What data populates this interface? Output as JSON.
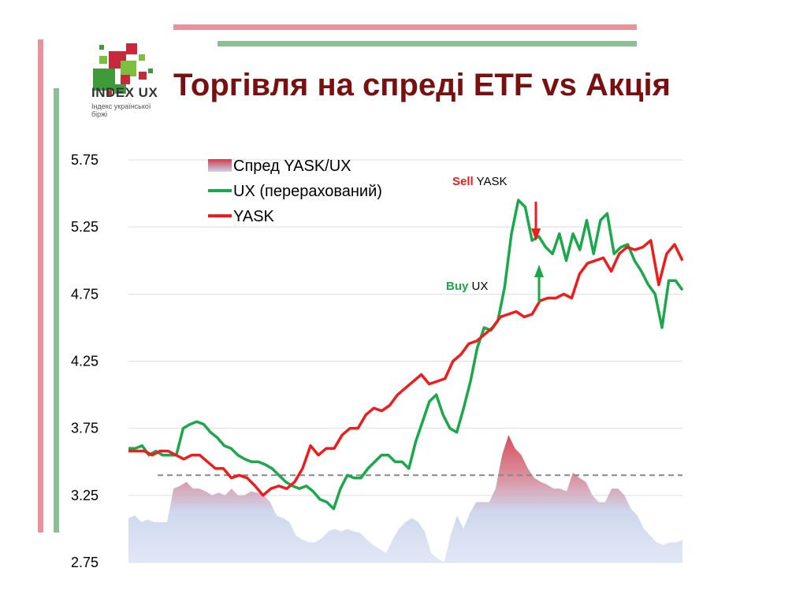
{
  "header": {
    "title": "Торгівля на спреді ETF vs Акція",
    "logo_title": "INDEX UX",
    "logo_subtitle": "Індекс української біржі"
  },
  "colors": {
    "yask": "#ee1c1c",
    "ux": "#1aa84a",
    "spread_fill": "#c9d3ec",
    "spread_hot": "#d23a4a",
    "dashed_line": "#888888",
    "title": "#7a0f0f"
  },
  "chart_data": {
    "type": "line",
    "ylim": [
      2.75,
      5.75
    ],
    "yticks": [
      "5.75",
      "5.25",
      "4.75",
      "4.25",
      "3.75",
      "3.25",
      "2.75"
    ],
    "grid": true,
    "legend_placement": "top-left",
    "reference_level": 3.4,
    "series": [
      {
        "name": "Спред YASK/UX",
        "style": "area",
        "values": [
          3.08,
          3.1,
          3.05,
          3.07,
          3.05,
          3.05,
          3.05,
          3.3,
          3.32,
          3.35,
          3.3,
          3.3,
          3.28,
          3.25,
          3.27,
          3.25,
          3.3,
          3.25,
          3.25,
          3.28,
          3.27,
          3.25,
          3.2,
          3.1,
          3.08,
          3.05,
          2.95,
          2.92,
          2.9,
          2.9,
          2.93,
          2.98,
          3.0,
          2.98,
          3.0,
          2.98,
          2.97,
          2.92,
          2.88,
          2.85,
          2.82,
          2.92,
          3.0,
          3.05,
          3.08,
          3.05,
          2.98,
          2.82,
          2.78,
          2.75,
          2.95,
          3.1,
          3.0,
          3.12,
          3.2,
          3.2,
          3.2,
          3.3,
          3.55,
          3.7,
          3.6,
          3.55,
          3.45,
          3.38,
          3.35,
          3.33,
          3.3,
          3.3,
          3.28,
          3.42,
          3.38,
          3.35,
          3.25,
          3.2,
          3.2,
          3.3,
          3.3,
          3.25,
          3.15,
          3.1,
          3.0,
          2.95,
          2.9,
          2.88,
          2.9,
          2.9,
          2.92
        ]
      },
      {
        "name": "UX (перерахований)",
        "style": "line",
        "values": [
          3.6,
          3.6,
          3.62,
          3.55,
          3.58,
          3.55,
          3.55,
          3.55,
          3.75,
          3.78,
          3.8,
          3.78,
          3.72,
          3.68,
          3.62,
          3.6,
          3.55,
          3.52,
          3.5,
          3.5,
          3.48,
          3.45,
          3.4,
          3.35,
          3.32,
          3.3,
          3.32,
          3.28,
          3.22,
          3.2,
          3.15,
          3.3,
          3.4,
          3.38,
          3.38,
          3.45,
          3.5,
          3.55,
          3.55,
          3.5,
          3.5,
          3.45,
          3.65,
          3.8,
          3.95,
          4.0,
          3.85,
          3.75,
          3.72,
          3.9,
          4.1,
          4.35,
          4.5,
          4.48,
          4.55,
          4.8,
          5.2,
          5.45,
          5.4,
          5.15,
          5.18,
          5.1,
          5.05,
          5.2,
          5.0,
          5.2,
          5.08,
          5.3,
          5.05,
          5.3,
          5.35,
          5.05,
          5.1,
          5.12,
          5.0,
          4.92,
          4.82,
          4.75,
          4.5,
          4.85,
          4.85,
          4.78
        ]
      },
      {
        "name": "YASK",
        "style": "line",
        "values": [
          3.58,
          3.58,
          3.58,
          3.55,
          3.58,
          3.58,
          3.55,
          3.52,
          3.55,
          3.55,
          3.5,
          3.45,
          3.45,
          3.38,
          3.4,
          3.38,
          3.32,
          3.25,
          3.3,
          3.32,
          3.3,
          3.35,
          3.45,
          3.62,
          3.55,
          3.6,
          3.6,
          3.7,
          3.75,
          3.75,
          3.85,
          3.9,
          3.88,
          3.92,
          4.0,
          4.05,
          4.1,
          4.15,
          4.08,
          4.1,
          4.12,
          4.25,
          4.3,
          4.38,
          4.4,
          4.45,
          4.5,
          4.58,
          4.6,
          4.62,
          4.58,
          4.6,
          4.7,
          4.72,
          4.72,
          4.75,
          4.72,
          4.9,
          4.98,
          5.0,
          5.02,
          4.92,
          5.05,
          5.1,
          5.08,
          5.1,
          5.15,
          4.82,
          5.05,
          5.12,
          5.0
        ]
      }
    ],
    "annotations": [
      {
        "bold": "Sell",
        "text": "YASK",
        "bold_color": "#ee1c1c",
        "arrow": "down",
        "arrow_color": "#ee1c1c"
      },
      {
        "bold": "Buy",
        "text": "UX",
        "bold_color": "#1aa84a",
        "arrow": "up",
        "arrow_color": "#1aa84a"
      }
    ]
  }
}
